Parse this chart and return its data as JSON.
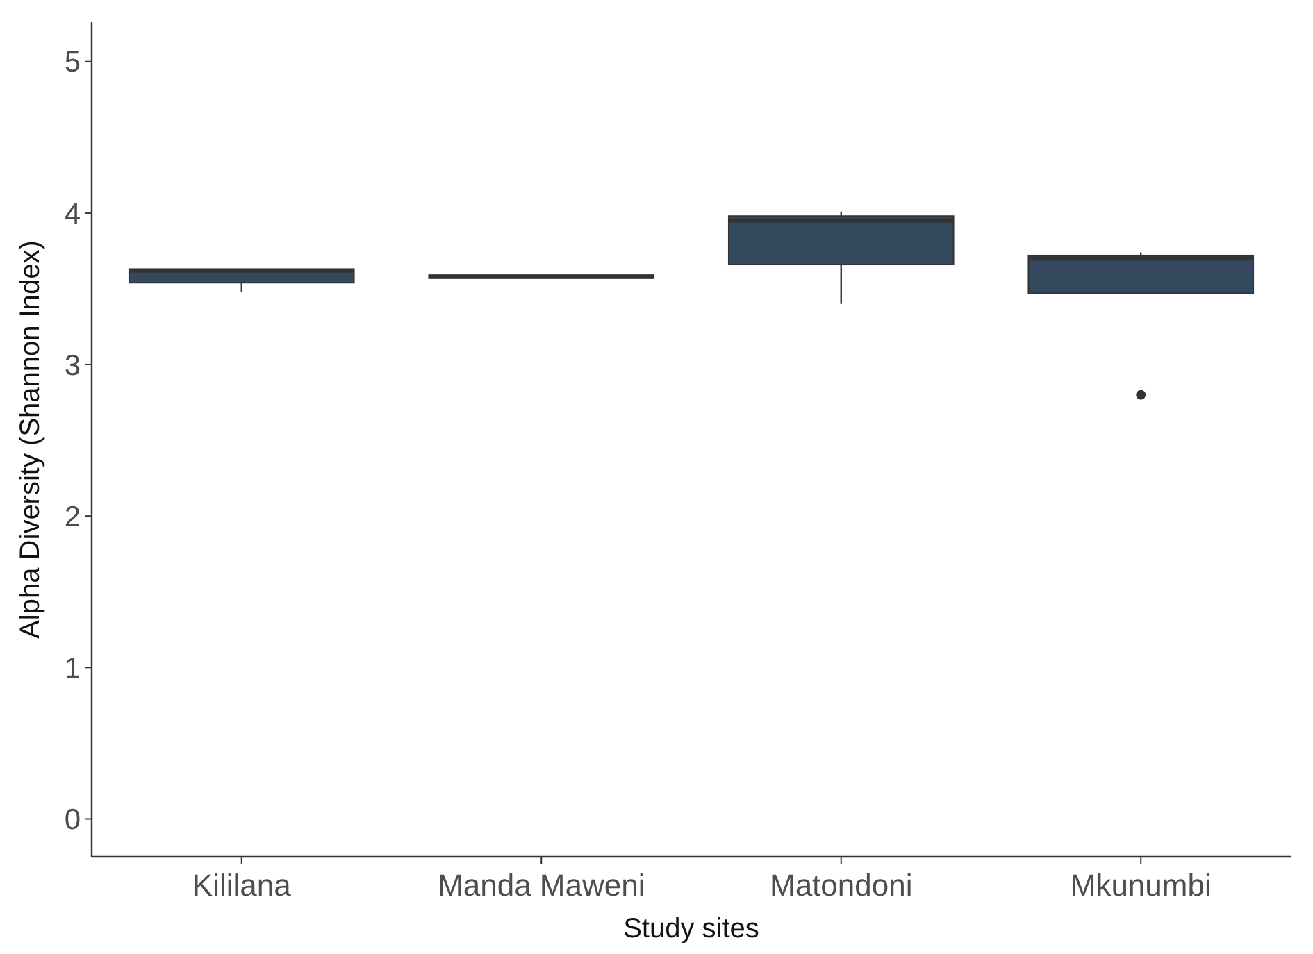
{
  "chart_data": {
    "type": "box",
    "xlabel": "Study sites",
    "ylabel": "Alpha Diversity (Shannon Index)",
    "categories": [
      "Kililana",
      "Manda Maweni",
      "Matondoni",
      "Mkunumbi"
    ],
    "color": "#34495e",
    "ylim": [
      -0.25,
      5.26
    ],
    "yticks": [
      0,
      1,
      2,
      3,
      4,
      5
    ],
    "grid": false,
    "boxes": [
      {
        "low": 3.48,
        "q1": 3.54,
        "median": 3.62,
        "q3": 3.63,
        "high": 3.63
      },
      {
        "low": 3.57,
        "q1": 3.57,
        "median": 3.58,
        "q3": 3.59,
        "high": 3.59
      },
      {
        "low": 3.4,
        "q1": 3.66,
        "median": 3.95,
        "q3": 3.98,
        "high": 4.01
      },
      {
        "low": 3.47,
        "q1": 3.47,
        "median": 3.7,
        "q3": 3.72,
        "high": 3.74,
        "outliers": [
          2.8
        ]
      }
    ]
  }
}
